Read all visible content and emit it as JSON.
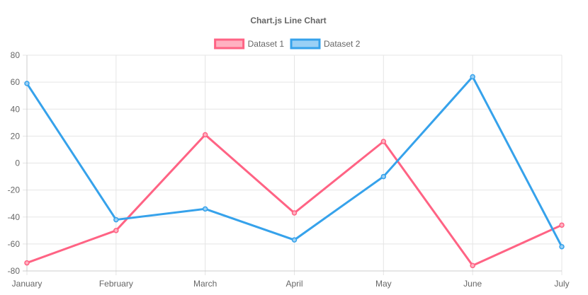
{
  "chart_data": {
    "type": "line",
    "title": "Chart.js Line Chart",
    "categories": [
      "January",
      "February",
      "March",
      "April",
      "May",
      "June",
      "July"
    ],
    "ylim": [
      -80,
      80
    ],
    "yticks": [
      80,
      60,
      40,
      20,
      0,
      -20,
      -40,
      -60,
      -80
    ],
    "ytick_labels": [
      "80",
      "60",
      "40",
      "20",
      "0",
      "-20",
      "-40",
      "-60",
      "-80"
    ],
    "grid": true,
    "legend_placement": "top-center",
    "series": [
      {
        "name": "Dataset 1",
        "values": [
          -74,
          -50,
          21,
          -37,
          16,
          -76,
          -46
        ],
        "border_color": "#ff6384",
        "fill_color": "#ffb1c1"
      },
      {
        "name": "Dataset 2",
        "values": [
          59,
          -42,
          -34,
          -57,
          -10,
          64,
          -62
        ],
        "border_color": "#36a2eb",
        "fill_color": "#9ad0f5"
      }
    ]
  },
  "colors": {
    "text": "#666666",
    "grid": "#e5e5e5",
    "axis": "#cccccc"
  }
}
